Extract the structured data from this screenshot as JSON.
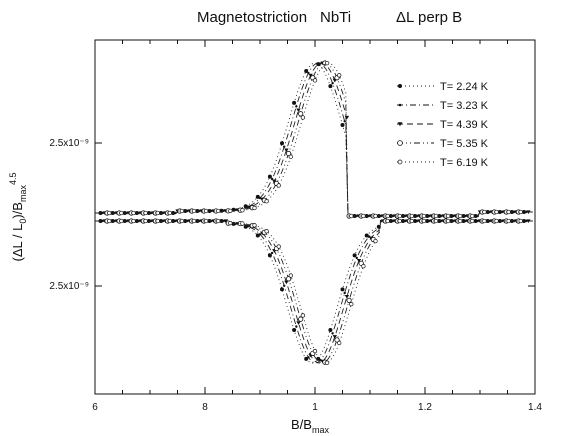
{
  "chart_data": {
    "type": "scatter",
    "title_parts": [
      "Magnetostriction",
      "NbTi",
      "ΔL perp B"
    ],
    "xlabel": "B/B",
    "xlabel_sub": "max",
    "ylabel_main": "(ΔL / L",
    "ylabel_sub0": "0",
    "ylabel_mid": ")/B",
    "ylabel_sub1": "max",
    "ylabel_sup": "4.5",
    "xlim": [
      0.6,
      1.4
    ],
    "x_tick_labels": [
      "6",
      "8",
      "1",
      "1.2",
      "1.4"
    ],
    "y_tick_labels": [
      "2.5x10⁻⁹",
      "2.5x10⁻⁹"
    ],
    "grid": false,
    "legend_position": "top-right",
    "series": [
      {
        "name": "T= 2.24 K",
        "marker": "filled-circle",
        "line": "dotted"
      },
      {
        "name": "T= 3.23 K",
        "marker": "small-dot",
        "line": "dash-dot"
      },
      {
        "name": "T= 4.39 K",
        "marker": "triangle",
        "line": "dashed"
      },
      {
        "name": "T= 5.35 K",
        "marker": "open-circle",
        "line": "dash-dot-dot"
      },
      {
        "name": "T= 6.19 K",
        "marker": "open-circle-small",
        "line": "dotted"
      }
    ]
  }
}
